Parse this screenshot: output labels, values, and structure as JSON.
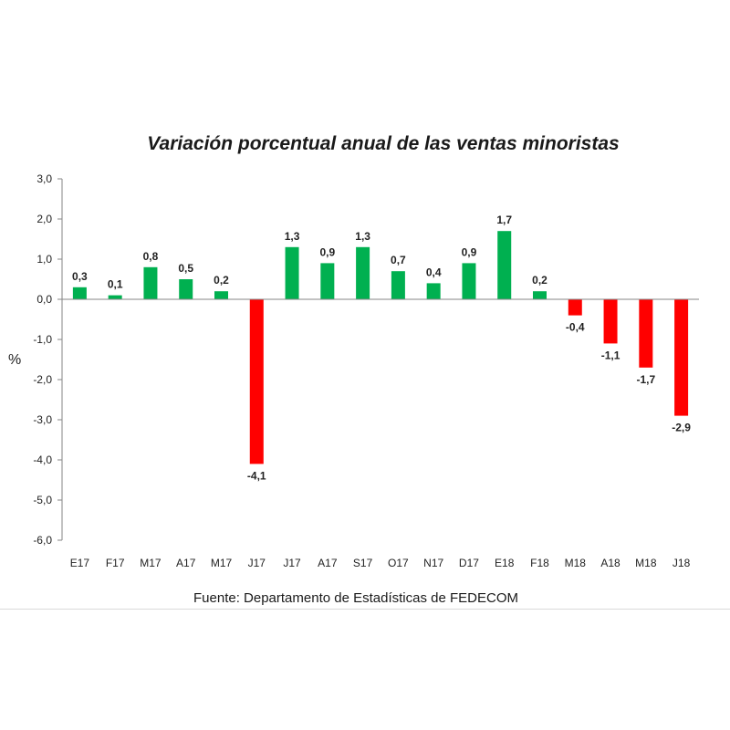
{
  "chart_data": {
    "type": "bar",
    "title": "Variación porcentual anual de las ventas minoristas",
    "xlabel": "",
    "ylabel": "%",
    "categories": [
      "E17",
      "F17",
      "M17",
      "A17",
      "M17",
      "J17",
      "J17",
      "A17",
      "S17",
      "O17",
      "N17",
      "D17",
      "E18",
      "F18",
      "M18",
      "A18",
      "M18",
      "J18"
    ],
    "values": [
      0.3,
      0.1,
      0.8,
      0.5,
      0.2,
      -4.1,
      1.3,
      0.9,
      1.3,
      0.7,
      0.4,
      0.9,
      1.7,
      0.2,
      -0.4,
      -1.1,
      -1.7,
      -2.9
    ],
    "data_labels": [
      "0,3",
      "0,1",
      "0,8",
      "0,5",
      "0,2",
      "-4,1",
      "1,3",
      "0,9",
      "1,3",
      "0,7",
      "0,4",
      "0,9",
      "1,7",
      "0,2",
      "-0,4",
      "-1,1",
      "-1,7",
      "-2,9"
    ],
    "ylim": [
      -6,
      3
    ],
    "yticks": [
      3,
      2,
      1,
      0,
      -1,
      -2,
      -3,
      -4,
      -5,
      -6
    ],
    "ytick_labels": [
      "3,0",
      "2,0",
      "1,0",
      "0,0",
      "-1,0",
      "-2,0",
      "-3,0",
      "-4,0",
      "-5,0",
      "-6,0"
    ],
    "grid": false,
    "legend": "none",
    "colors": {
      "positive": "#00b050",
      "negative": "#ff0000"
    }
  },
  "source": "Fuente: Departamento de Estadísticas de FEDECOM"
}
